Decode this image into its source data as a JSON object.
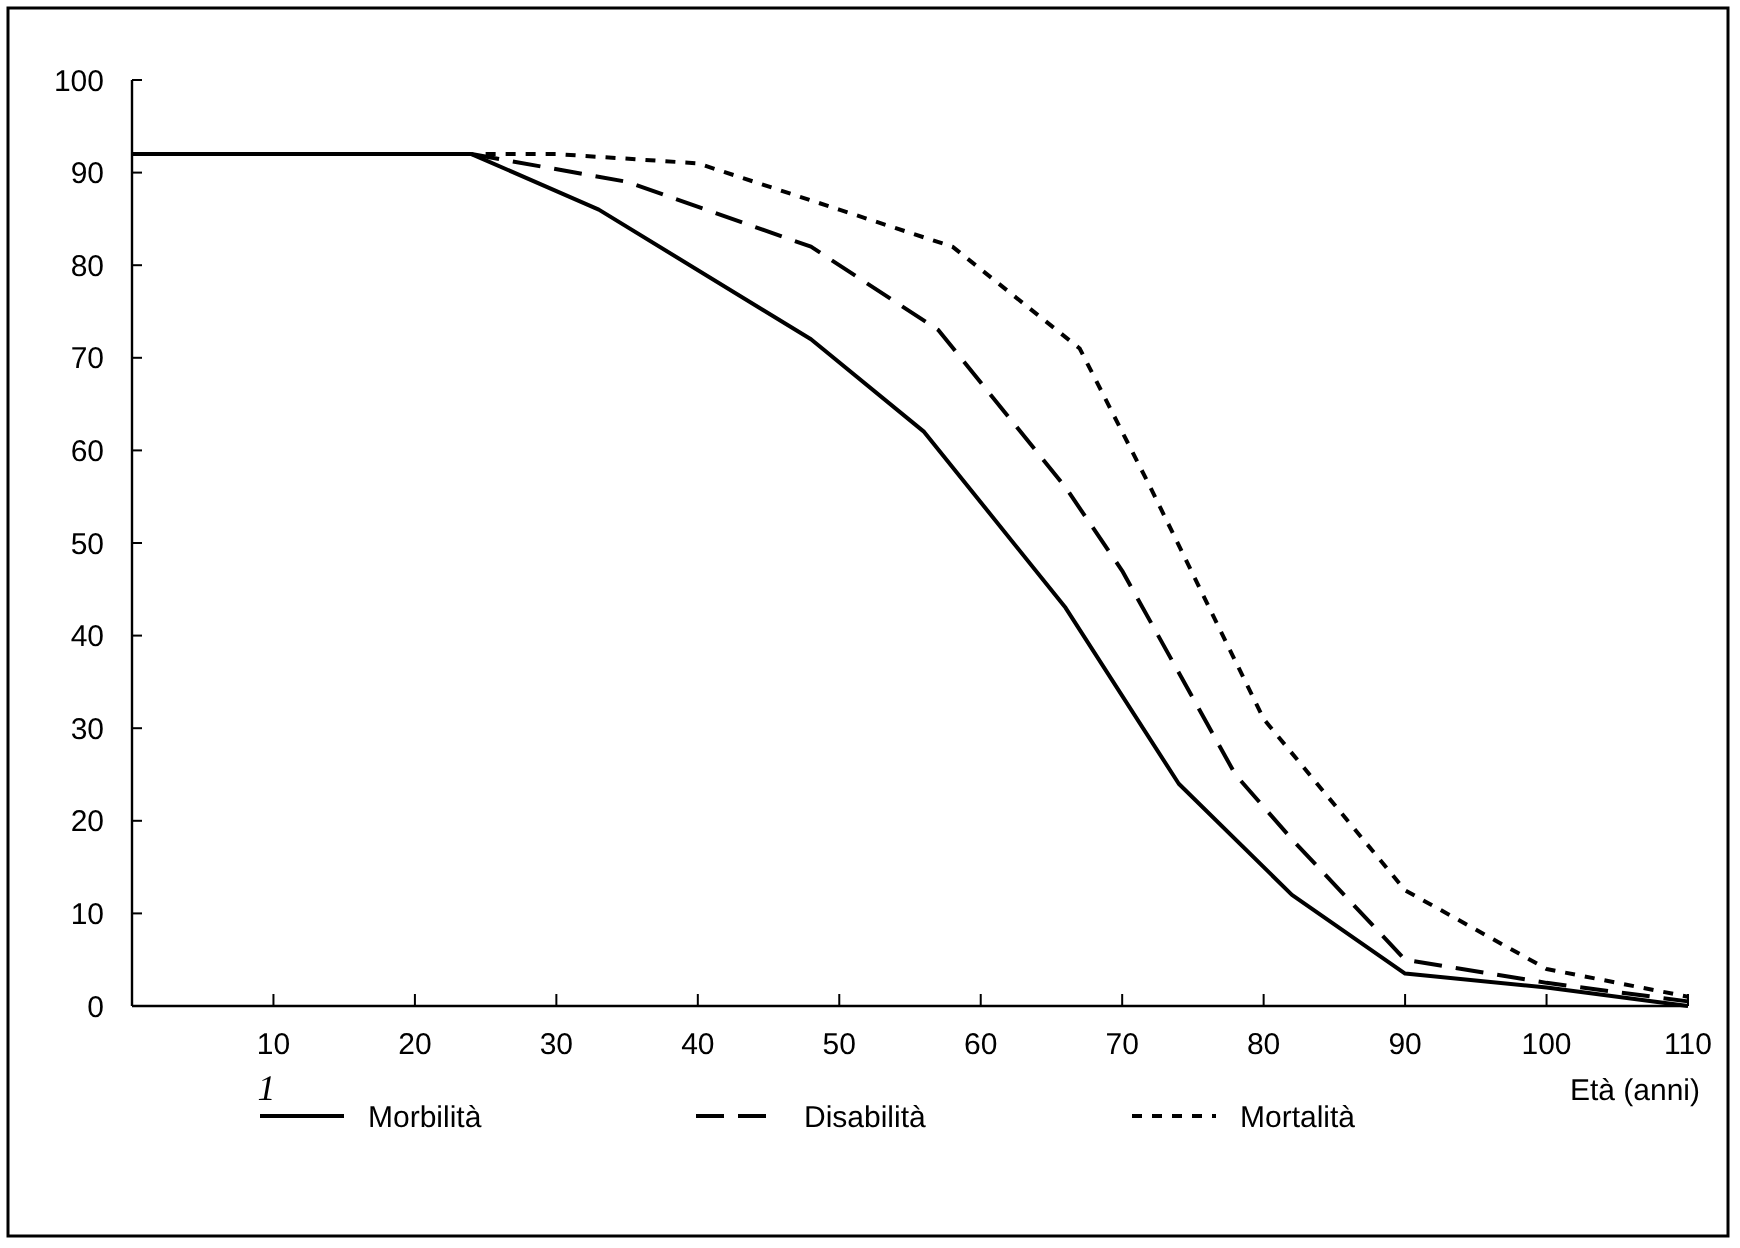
{
  "chart_data": {
    "type": "line",
    "xlabel": "Età (anni)",
    "xlim": [
      0,
      110
    ],
    "xticks": [
      10,
      20,
      30,
      40,
      50,
      60,
      70,
      80,
      90,
      100,
      110
    ],
    "ylim": [
      0,
      100
    ],
    "yticks": [
      0,
      10,
      20,
      30,
      40,
      50,
      60,
      70,
      80,
      90,
      100
    ],
    "grid": false,
    "legend": "bottom",
    "annotations": [
      "1"
    ],
    "series": [
      {
        "name": "Morbilità",
        "color": "#000000",
        "line_style": "solid",
        "x": [
          0,
          24,
          33,
          48,
          56,
          66,
          74,
          82,
          90,
          100,
          110
        ],
        "values": [
          92,
          92,
          86,
          72,
          62,
          43,
          24,
          12,
          3.5,
          2,
          0
        ]
      },
      {
        "name": "Disabilità",
        "color": "#000000",
        "line_style": "dashed",
        "x": [
          24,
          35,
          48,
          57,
          66,
          70,
          78,
          82,
          90,
          100,
          110
        ],
        "values": [
          92,
          89,
          82,
          73,
          56,
          47,
          25,
          18,
          5,
          2.5,
          0.5
        ]
      },
      {
        "name": "Mortalità",
        "color": "#000000",
        "line_style": "dotted",
        "x": [
          25,
          30,
          40,
          50,
          58,
          67,
          72,
          80,
          90,
          100,
          110
        ],
        "values": [
          92,
          92,
          91,
          86,
          82,
          71,
          56,
          31,
          12.5,
          4,
          1
        ]
      }
    ]
  }
}
